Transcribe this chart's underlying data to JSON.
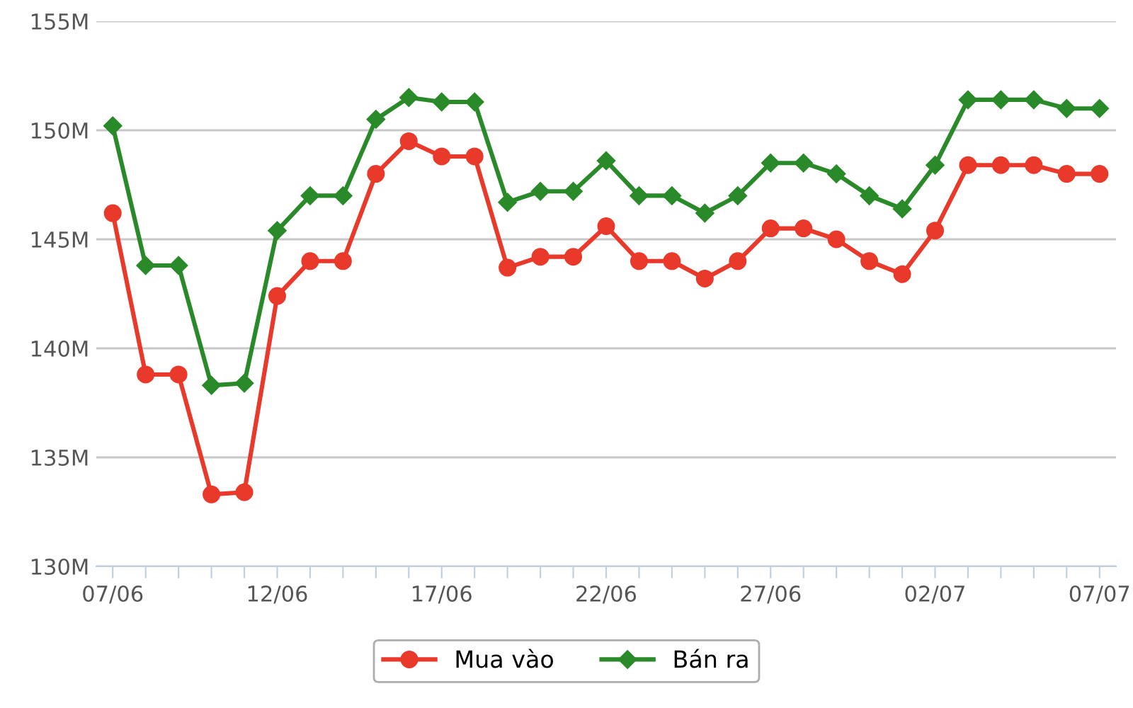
{
  "chart_data": {
    "type": "line",
    "categories": [
      "07/06",
      null,
      null,
      null,
      null,
      "12/06",
      null,
      null,
      null,
      null,
      "17/06",
      null,
      null,
      null,
      null,
      "22/06",
      null,
      null,
      null,
      null,
      "27/06",
      null,
      null,
      null,
      null,
      "02/07",
      null,
      null,
      null,
      null,
      "07/07"
    ],
    "series": [
      {
        "name": "Mua vào",
        "color": "#e8392b",
        "marker": "circle",
        "values": [
          146.2,
          138.8,
          138.8,
          133.3,
          133.4,
          142.4,
          144.0,
          144.0,
          148.0,
          149.5,
          148.8,
          148.8,
          143.7,
          144.2,
          144.2,
          145.6,
          144.0,
          144.0,
          143.2,
          144.0,
          145.5,
          145.5,
          145.0,
          144.0,
          143.4,
          145.4,
          148.4,
          148.4,
          148.4,
          148.0,
          148.0
        ]
      },
      {
        "name": "Bán ra",
        "color": "#2a8a2a",
        "marker": "diamond",
        "values": [
          150.2,
          143.8,
          143.8,
          138.3,
          138.4,
          145.4,
          147.0,
          147.0,
          150.5,
          151.5,
          151.3,
          151.3,
          146.7,
          147.2,
          147.2,
          148.6,
          147.0,
          147.0,
          146.2,
          147.0,
          148.5,
          148.5,
          148.0,
          147.0,
          146.4,
          148.4,
          151.4,
          151.4,
          151.4,
          151.0,
          151.0
        ]
      }
    ],
    "ylim": [
      130,
      155
    ],
    "yticks": [
      {
        "value": 130,
        "label": "130M"
      },
      {
        "value": 135,
        "label": "135M"
      },
      {
        "value": 140,
        "label": "140M"
      },
      {
        "value": 145,
        "label": "145M"
      },
      {
        "value": 150,
        "label": "150M"
      },
      {
        "value": 155,
        "label": "155M"
      }
    ],
    "grid": "y",
    "legend": "bottom",
    "line_style": "solid"
  }
}
